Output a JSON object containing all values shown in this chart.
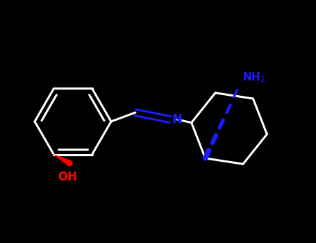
{
  "background_color": "#000000",
  "bond_color": "#ffffff",
  "imine_N_color": "#1a1aff",
  "NH2_color": "#1a1aff",
  "OH_color": "#ff0000",
  "line_width": 2.2,
  "figsize": [
    4.55,
    3.5
  ],
  "dpi": 100,
  "xlim": [
    0,
    455
  ],
  "ylim": [
    0,
    350
  ]
}
